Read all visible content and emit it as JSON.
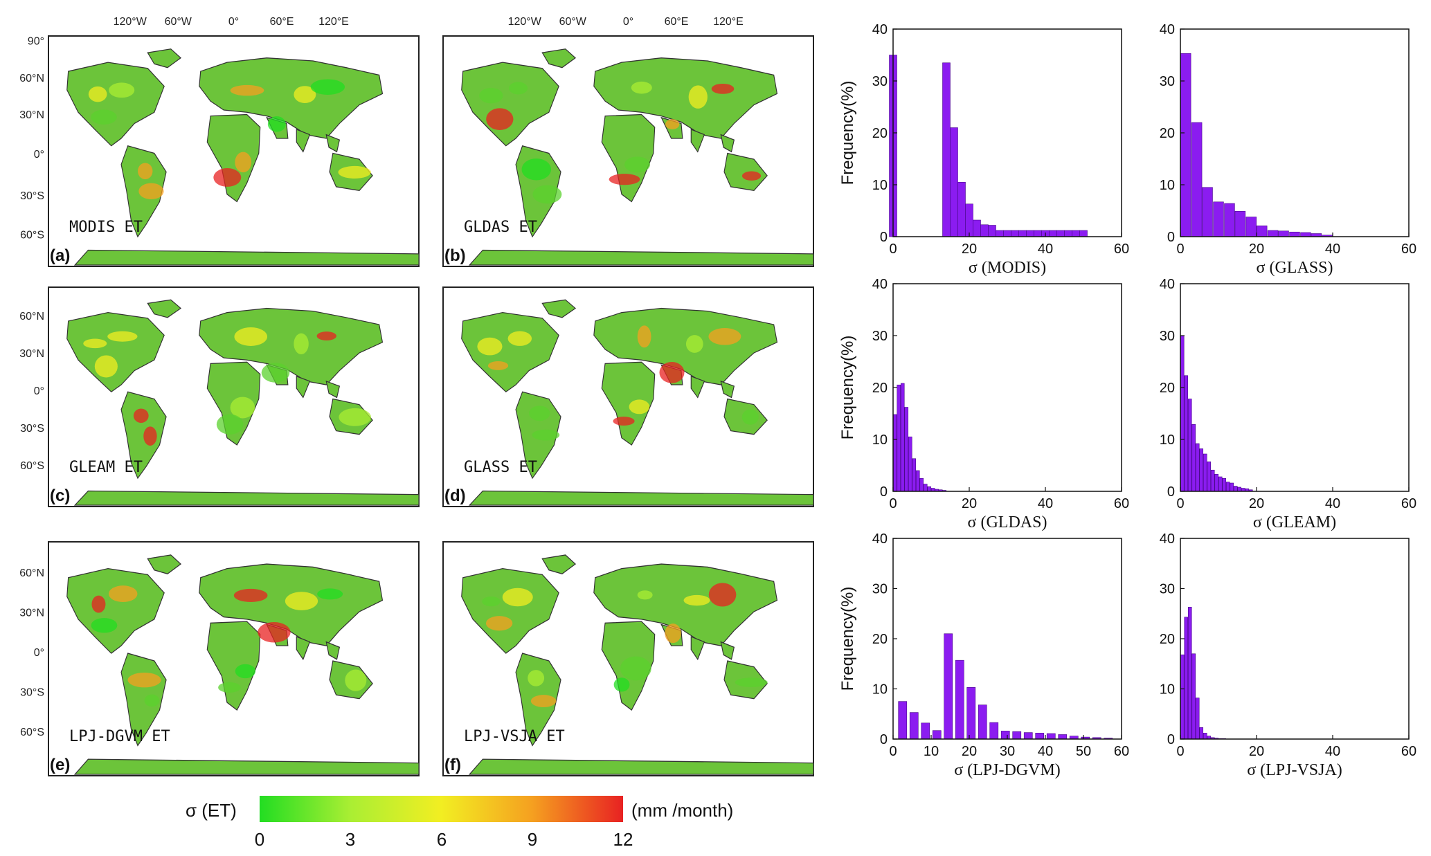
{
  "colorbar": {
    "label": "σ (ET)",
    "unit": "(mm /month)",
    "ticks": [
      "0",
      "3",
      "6",
      "9",
      "12"
    ],
    "range": [
      0,
      12
    ],
    "colors": [
      "#22dd22",
      "#aaee33",
      "#f2ee22",
      "#f5a020",
      "#e82222"
    ]
  },
  "maps": [
    {
      "id": "a",
      "panel_label": "(a)",
      "product_label": "MODIS ET"
    },
    {
      "id": "b",
      "panel_label": "(b)",
      "product_label": "GLDAS ET"
    },
    {
      "id": "c",
      "panel_label": "(c)",
      "product_label": "GLEAM ET"
    },
    {
      "id": "d",
      "panel_label": "(d)",
      "product_label": "GLASS ET"
    },
    {
      "id": "e",
      "panel_label": "(e)",
      "product_label": "LPJ-DGVM ET"
    },
    {
      "id": "f",
      "panel_label": "(f)",
      "product_label": "LPJ-VSJA ET"
    }
  ],
  "map_axes": {
    "lon_ticks": [
      "120°W",
      "60°W",
      "0°",
      "60°E",
      "120°E"
    ],
    "lat_ticks_row1": [
      "90°",
      "60°N",
      "30°N",
      "0°",
      "30°S",
      "60°S"
    ],
    "lat_ticks": [
      "60°N",
      "30°N",
      "0°",
      "30°S",
      "60°S"
    ]
  },
  "map_colors": {
    "ocean": "#ffffff",
    "coast": "#333333",
    "land_base": "#6cc43a"
  },
  "chart_data": [
    {
      "type": "bar",
      "xlabel": "σ  (MODIS)",
      "ylabel": "Frequency(%)",
      "xlim": [
        0,
        60
      ],
      "ylim": [
        0,
        40
      ],
      "xticks": [
        0,
        20,
        40,
        60
      ],
      "yticks": [
        0,
        10,
        20,
        30,
        40
      ],
      "bar_color": "#8b1cf0",
      "bar_width": 2,
      "x": [
        0,
        14,
        16,
        18,
        20,
        22,
        24,
        26,
        28,
        30,
        32,
        34,
        36,
        38,
        40,
        42,
        44,
        46,
        48,
        50
      ],
      "values": [
        35,
        33.5,
        21,
        10.5,
        6.3,
        3.2,
        2.3,
        2.2,
        1.2,
        1.2,
        1.2,
        1.2,
        1.2,
        1.2,
        1.2,
        1.2,
        1.2,
        1.2,
        1.2,
        1.2
      ]
    },
    {
      "type": "bar",
      "xlabel": "σ  (GLASS)",
      "ylabel": "",
      "xlim": [
        0,
        60
      ],
      "ylim": [
        0,
        40
      ],
      "xticks": [
        0,
        20,
        40,
        60
      ],
      "yticks": [
        0,
        10,
        20,
        30,
        40
      ],
      "bar_color": "#8b1cf0",
      "bar_width": 2.7,
      "x": [
        1.4,
        4.3,
        7.1,
        10,
        12.9,
        15.7,
        18.6,
        21.4,
        24.3,
        27.1,
        30,
        32.9,
        35.7,
        38.6
      ],
      "values": [
        35.3,
        22,
        9.5,
        6.7,
        6.4,
        4.9,
        3.8,
        2.1,
        1.2,
        1.1,
        0.9,
        0.8,
        0.6,
        0.3
      ]
    },
    {
      "type": "bar",
      "xlabel": "σ  (GLDAS)",
      "ylabel": "Frequency(%)",
      "xlim": [
        0,
        60
      ],
      "ylim": [
        0,
        40
      ],
      "xticks": [
        0,
        20,
        40,
        60
      ],
      "yticks": [
        0,
        10,
        20,
        30,
        40
      ],
      "bar_color": "#8b1cf0",
      "bar_width": 0.9,
      "x": [
        0.5,
        1.5,
        2.5,
        3.5,
        4.5,
        5.5,
        6.5,
        7.5,
        8.5,
        9.5,
        10.5,
        11.5,
        12.5,
        13.5
      ],
      "values": [
        14.8,
        20.5,
        20.8,
        16.2,
        10.5,
        6.3,
        4,
        2.5,
        1.4,
        0.9,
        0.6,
        0.4,
        0.3,
        0.2
      ]
    },
    {
      "type": "bar",
      "xlabel": "σ  (GLEAM)",
      "ylabel": "",
      "xlim": [
        0,
        60
      ],
      "ylim": [
        0,
        40
      ],
      "xticks": [
        0,
        20,
        40,
        60
      ],
      "yticks": [
        0,
        10,
        20,
        30,
        40
      ],
      "bar_color": "#8b1cf0",
      "bar_width": 0.9,
      "x": [
        0.5,
        1.5,
        2.5,
        3.5,
        4.5,
        5.5,
        6.5,
        7.5,
        8.5,
        9.5,
        10.5,
        11.5,
        12.5,
        13.5,
        14.5,
        15.5,
        16.5,
        17.5,
        18.5
      ],
      "values": [
        30,
        22.3,
        17.8,
        12.9,
        9.2,
        8.2,
        7.2,
        5.7,
        4.1,
        3.3,
        2.8,
        2.5,
        1.8,
        1.6,
        1,
        0.8,
        0.6,
        0.5,
        0.3
      ]
    },
    {
      "type": "bar",
      "xlabel": "σ  (LPJ-DGVM)",
      "ylabel": "Frequency(%)",
      "xlim": [
        0,
        60
      ],
      "ylim": [
        0,
        40
      ],
      "xticks": [
        0,
        10,
        20,
        30,
        40,
        50,
        60
      ],
      "yticks": [
        0,
        10,
        20,
        30,
        40
      ],
      "bar_color": "#8b1cf0",
      "bar_width": 2.2,
      "x": [
        2.5,
        5.5,
        8.5,
        11.5,
        14.5,
        17.5,
        20.5,
        23.5,
        26.5,
        29.5,
        32.5,
        35.5,
        38.5,
        41.5,
        44.5,
        47.5,
        50.5,
        53.5,
        56.5
      ],
      "values": [
        7.5,
        5.3,
        3.2,
        1.7,
        21,
        15.7,
        10.3,
        6.8,
        3.3,
        1.6,
        1.5,
        1.3,
        1.2,
        1.1,
        0.9,
        0.6,
        0.4,
        0.3,
        0.2
      ]
    },
    {
      "type": "bar",
      "xlabel": "σ  (LPJ-VSJA)",
      "ylabel": "",
      "xlim": [
        0,
        60
      ],
      "ylim": [
        0,
        40
      ],
      "xticks": [
        0,
        20,
        40,
        60
      ],
      "yticks": [
        0,
        10,
        20,
        30,
        40
      ],
      "bar_color": "#8b1cf0",
      "bar_width": 0.9,
      "x": [
        0.5,
        1.5,
        2.5,
        3.5,
        4.5,
        5.5,
        6.5,
        7.5,
        8.5,
        9.5,
        10.5,
        11.5
      ],
      "values": [
        16.8,
        24.3,
        26.3,
        17,
        8.2,
        2.3,
        1.2,
        0.6,
        0.3,
        0.2,
        0.1,
        0.1
      ]
    }
  ]
}
